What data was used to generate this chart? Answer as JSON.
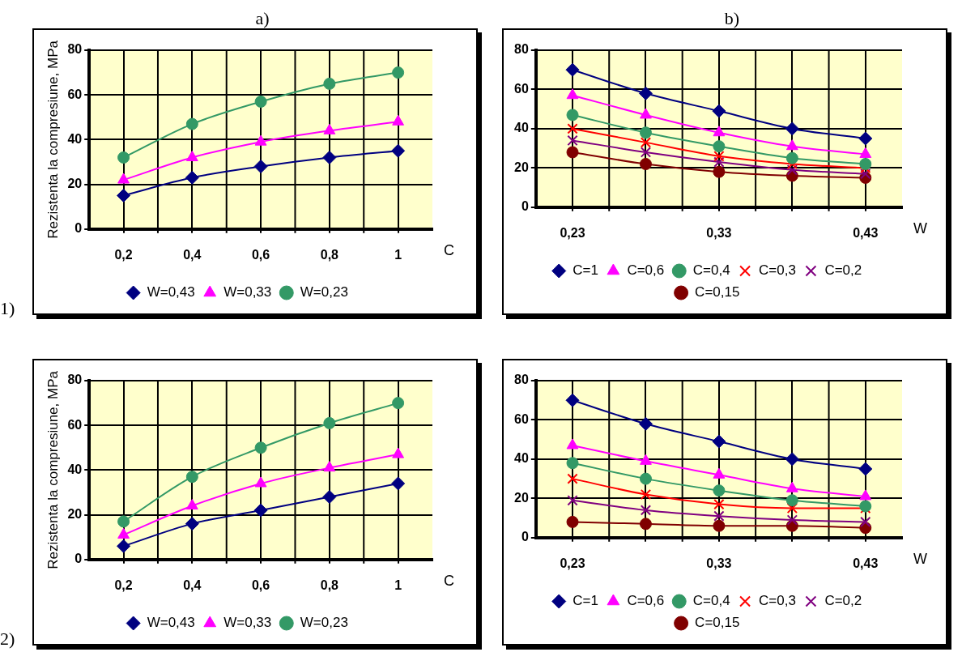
{
  "chart_data": [
    {
      "type": "line",
      "title": "a)",
      "ylabel": "Rezistenta la compresiune, MPa",
      "xlabel": "C",
      "categories": [
        "0,2",
        "0,4",
        "0,6",
        "0,8",
        "1"
      ],
      "ylim": [
        0,
        80
      ],
      "yticks": [
        0,
        20,
        40,
        60,
        80
      ],
      "grid": true,
      "legend": "bottom",
      "annotations": [
        "1)"
      ],
      "series": [
        {
          "name": "W=0,43",
          "color": "#000080",
          "marker": "diamond",
          "values": [
            15,
            23,
            28,
            32,
            35
          ]
        },
        {
          "name": "W=0,33",
          "color": "#ff00ff",
          "marker": "triangle",
          "values": [
            22,
            32,
            39,
            44,
            48
          ]
        },
        {
          "name": "W=0,23",
          "color": "#339966",
          "marker": "circle",
          "values": [
            32,
            47,
            57,
            65,
            70
          ]
        }
      ]
    },
    {
      "type": "line",
      "title": "b)",
      "xlabel": "W",
      "categories": [
        "0,23",
        null,
        "0,33",
        null,
        "0,43"
      ],
      "ylim": [
        0,
        80
      ],
      "yticks": [
        0,
        20,
        40,
        60,
        80
      ],
      "grid": true,
      "legend": "bottom",
      "series": [
        {
          "name": "C=1",
          "color": "#000080",
          "marker": "diamond",
          "values": [
            70,
            58,
            49,
            40,
            35
          ]
        },
        {
          "name": "C=0,6",
          "color": "#ff00ff",
          "marker": "triangle",
          "values": [
            57,
            47,
            38,
            31,
            27
          ]
        },
        {
          "name": "C=0,4",
          "color": "#339966",
          "marker": "circle",
          "values": [
            47,
            38,
            31,
            25,
            22
          ]
        },
        {
          "name": "C=0,3",
          "color": "#ff0000",
          "marker": "cross",
          "values": [
            40,
            33,
            26,
            22,
            20
          ]
        },
        {
          "name": "C=0,2",
          "color": "#800080",
          "marker": "cross",
          "values": [
            34,
            28,
            23,
            19,
            17
          ]
        },
        {
          "name": "C=0,15",
          "color": "#800000",
          "marker": "circle",
          "values": [
            28,
            22,
            18,
            16,
            15
          ]
        }
      ]
    },
    {
      "type": "line",
      "ylabel": "Rezistenta la compresiune, MPa",
      "xlabel": "C",
      "categories": [
        "0,2",
        "0,4",
        "0,6",
        "0,8",
        "1"
      ],
      "ylim": [
        0,
        80
      ],
      "yticks": [
        0,
        20,
        40,
        60,
        80
      ],
      "grid": true,
      "legend": "bottom",
      "annotations": [
        "2)"
      ],
      "series": [
        {
          "name": "W=0,43",
          "color": "#000080",
          "marker": "diamond",
          "values": [
            6,
            16,
            22,
            28,
            34
          ]
        },
        {
          "name": "W=0,33",
          "color": "#ff00ff",
          "marker": "triangle",
          "values": [
            11,
            24,
            34,
            41,
            47
          ]
        },
        {
          "name": "W=0,23",
          "color": "#339966",
          "marker": "circle",
          "values": [
            17,
            37,
            50,
            61,
            70
          ]
        }
      ]
    },
    {
      "type": "line",
      "xlabel": "W",
      "categories": [
        "0,23",
        null,
        "0,33",
        null,
        "0,43"
      ],
      "ylim": [
        0,
        80
      ],
      "yticks": [
        0,
        20,
        40,
        60,
        80
      ],
      "grid": true,
      "legend": "bottom",
      "series": [
        {
          "name": "C=1",
          "color": "#000080",
          "marker": "diamond",
          "values": [
            70,
            58,
            49,
            40,
            35
          ]
        },
        {
          "name": "C=0,6",
          "color": "#ff00ff",
          "marker": "triangle",
          "values": [
            47,
            39,
            32,
            25,
            21
          ]
        },
        {
          "name": "C=0,4",
          "color": "#339966",
          "marker": "circle",
          "values": [
            38,
            30,
            24,
            19,
            16
          ]
        },
        {
          "name": "C=0,3",
          "color": "#ff0000",
          "marker": "cross",
          "values": [
            30,
            22,
            17,
            15,
            15
          ]
        },
        {
          "name": "C=0,2",
          "color": "#800080",
          "marker": "cross",
          "values": [
            19,
            14,
            11,
            9,
            8
          ]
        },
        {
          "name": "C=0,15",
          "color": "#800000",
          "marker": "circle",
          "values": [
            8,
            7,
            6,
            6,
            5
          ]
        }
      ]
    }
  ]
}
